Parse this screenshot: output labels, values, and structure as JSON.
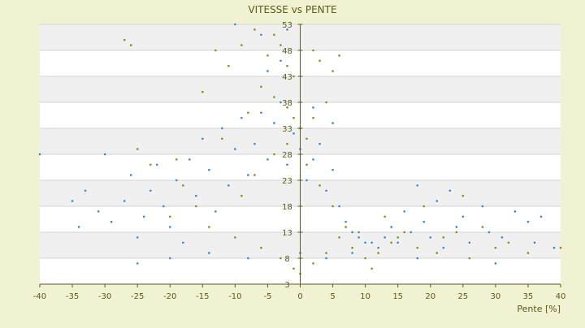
{
  "chart_data": {
    "type": "scatter",
    "title": "VITESSE vs PENTE",
    "xlabel": "Pente [%]",
    "ylabel": "",
    "xlim": [
      -40,
      40
    ],
    "ylim": [
      3,
      53
    ],
    "x_ticks": [
      "-40",
      "-35",
      "-30",
      "-25",
      "-20",
      "-15",
      "-10",
      "-5",
      "0",
      "5",
      "10",
      "15",
      "20",
      "25",
      "30",
      "35",
      "40"
    ],
    "y_ticks": [
      "3",
      "8",
      "13",
      "18",
      "23",
      "28",
      "33",
      "38",
      "43",
      "48",
      "53"
    ],
    "x_tick_values": [
      -40,
      -35,
      -30,
      -25,
      -20,
      -15,
      -10,
      -5,
      0,
      5,
      10,
      15,
      20,
      25,
      30,
      35,
      40
    ],
    "y_tick_values": [
      3,
      8,
      13,
      18,
      23,
      28,
      33,
      38,
      43,
      48,
      53
    ],
    "grid": true,
    "legend": "none",
    "series": [
      {
        "color": "#3a87d0",
        "points": [
          [
            -40,
            28
          ],
          [
            -35,
            19
          ],
          [
            -34,
            14
          ],
          [
            -33,
            21
          ],
          [
            -31,
            17
          ],
          [
            -30,
            28
          ],
          [
            -29,
            15
          ],
          [
            -27,
            19
          ],
          [
            -26,
            24
          ],
          [
            -25,
            12
          ],
          [
            -25,
            7
          ],
          [
            -24,
            16
          ],
          [
            -23,
            21
          ],
          [
            -22,
            26
          ],
          [
            -21,
            18
          ],
          [
            -20,
            14
          ],
          [
            -19,
            23
          ],
          [
            -18,
            11
          ],
          [
            -17,
            27
          ],
          [
            -16,
            20
          ],
          [
            -15,
            31
          ],
          [
            -14,
            25
          ],
          [
            -13,
            17
          ],
          [
            -12,
            33
          ],
          [
            -11,
            22
          ],
          [
            -10,
            29
          ],
          [
            -9,
            35
          ],
          [
            -8,
            24
          ],
          [
            -7,
            30
          ],
          [
            -6,
            36
          ],
          [
            -5,
            27
          ],
          [
            -4,
            34
          ],
          [
            -3,
            38
          ],
          [
            -2,
            26
          ],
          [
            -1,
            32
          ],
          [
            0,
            29
          ],
          [
            1,
            23
          ],
          [
            2,
            27
          ],
          [
            3,
            30
          ],
          [
            4,
            21
          ],
          [
            5,
            25
          ],
          [
            6,
            18
          ],
          [
            7,
            15
          ],
          [
            8,
            13
          ],
          [
            9,
            12
          ],
          [
            10,
            11
          ],
          [
            11,
            11
          ],
          [
            12,
            10
          ],
          [
            13,
            12
          ],
          [
            14,
            14
          ],
          [
            15,
            11
          ],
          [
            16,
            17
          ],
          [
            17,
            13
          ],
          [
            18,
            22
          ],
          [
            19,
            15
          ],
          [
            20,
            12
          ],
          [
            21,
            19
          ],
          [
            22,
            10
          ],
          [
            23,
            21
          ],
          [
            24,
            14
          ],
          [
            25,
            16
          ],
          [
            26,
            11
          ],
          [
            28,
            18
          ],
          [
            29,
            13
          ],
          [
            31,
            12
          ],
          [
            33,
            17
          ],
          [
            35,
            15
          ],
          [
            36,
            11
          ],
          [
            37,
            16
          ],
          [
            39,
            10
          ],
          [
            -10,
            53
          ],
          [
            -6,
            51
          ],
          [
            -2,
            52
          ],
          [
            -3,
            46
          ],
          [
            -5,
            44
          ],
          [
            2,
            37
          ],
          [
            5,
            34
          ],
          [
            -20,
            8
          ],
          [
            -14,
            9
          ],
          [
            -8,
            8
          ],
          [
            0,
            9
          ],
          [
            4,
            8
          ],
          [
            8,
            9
          ],
          [
            18,
            8
          ],
          [
            30,
            7
          ]
        ]
      },
      {
        "color": "#8c8a1e",
        "points": [
          [
            -27,
            50
          ],
          [
            -26,
            49
          ],
          [
            -13,
            48
          ],
          [
            -11,
            45
          ],
          [
            -9,
            49
          ],
          [
            -7,
            52
          ],
          [
            -5,
            47
          ],
          [
            -4,
            51
          ],
          [
            -3,
            49
          ],
          [
            -2,
            45
          ],
          [
            -1,
            43
          ],
          [
            2,
            48
          ],
          [
            3,
            46
          ],
          [
            5,
            44
          ],
          [
            6,
            47
          ],
          [
            -6,
            41
          ],
          [
            -4,
            39
          ],
          [
            -2,
            37
          ],
          [
            -1,
            35
          ],
          [
            0,
            33
          ],
          [
            1,
            31
          ],
          [
            2,
            35
          ],
          [
            4,
            38
          ],
          [
            -8,
            36
          ],
          [
            -12,
            31
          ],
          [
            -15,
            40
          ],
          [
            -19,
            27
          ],
          [
            -25,
            29
          ],
          [
            -23,
            26
          ],
          [
            -18,
            22
          ],
          [
            -14,
            14
          ],
          [
            -10,
            12
          ],
          [
            -6,
            10
          ],
          [
            -3,
            8
          ],
          [
            -1,
            6
          ],
          [
            0,
            5
          ],
          [
            2,
            7
          ],
          [
            4,
            9
          ],
          [
            6,
            12
          ],
          [
            8,
            10
          ],
          [
            10,
            8
          ],
          [
            11,
            6
          ],
          [
            12,
            9
          ],
          [
            14,
            11
          ],
          [
            16,
            13
          ],
          [
            19,
            18
          ],
          [
            22,
            12
          ],
          [
            25,
            20
          ],
          [
            28,
            14
          ],
          [
            32,
            11
          ],
          [
            -20,
            16
          ],
          [
            -16,
            18
          ],
          [
            -9,
            20
          ],
          [
            -7,
            24
          ],
          [
            -4,
            28
          ],
          [
            -2,
            30
          ],
          [
            1,
            26
          ],
          [
            3,
            22
          ],
          [
            5,
            18
          ],
          [
            7,
            14
          ],
          [
            9,
            13
          ],
          [
            13,
            16
          ],
          [
            15,
            12
          ],
          [
            18,
            10
          ],
          [
            21,
            9
          ],
          [
            24,
            13
          ],
          [
            26,
            8
          ],
          [
            30,
            10
          ],
          [
            35,
            9
          ],
          [
            40,
            10
          ]
        ]
      }
    ]
  }
}
